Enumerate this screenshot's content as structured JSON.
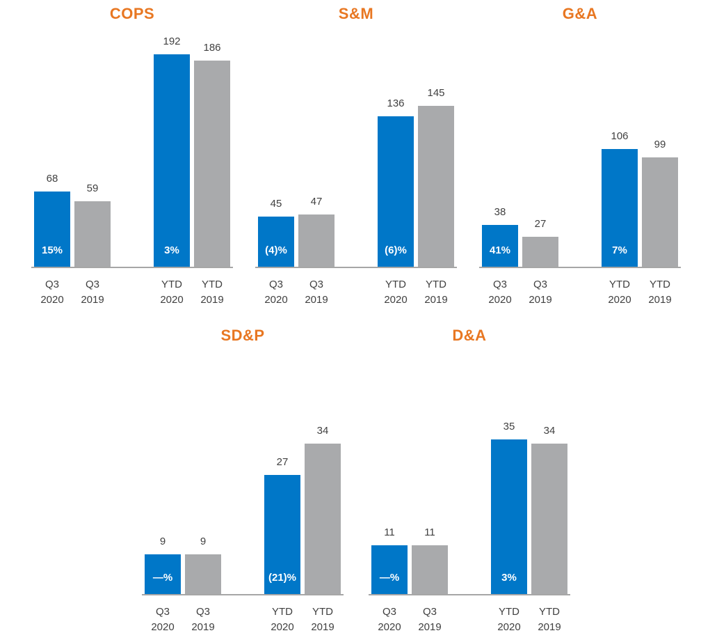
{
  "colors": {
    "bar_blue": "#0077C8",
    "bar_gray": "#A9AAAC",
    "title": "#E87722",
    "axis_line": "#A6A6A6",
    "text": "#404040",
    "pct_text": "#FFFFFF"
  },
  "bar_order": [
    "blue",
    "gray",
    "blue",
    "gray"
  ],
  "chart_data": [
    {
      "type": "bar",
      "row": "top",
      "title": "COPS",
      "categories": [
        [
          "Q3",
          "2020"
        ],
        [
          "Q3",
          "2019"
        ],
        [
          "YTD",
          "2020"
        ],
        [
          "YTD",
          "2019"
        ]
      ],
      "values": [
        68,
        59,
        192,
        186
      ],
      "pct_labels": [
        "15%",
        "",
        "3%",
        ""
      ],
      "ylim": [
        0,
        200
      ],
      "grid": false,
      "legend": false
    },
    {
      "type": "bar",
      "row": "top",
      "title": "S&M",
      "categories": [
        [
          "Q3",
          "2020"
        ],
        [
          "Q3",
          "2019"
        ],
        [
          "YTD",
          "2020"
        ],
        [
          "YTD",
          "2019"
        ]
      ],
      "values": [
        45,
        47,
        136,
        145
      ],
      "pct_labels": [
        "(4)%",
        "",
        "(6)%",
        ""
      ],
      "ylim": [
        0,
        200
      ],
      "grid": false,
      "legend": false
    },
    {
      "type": "bar",
      "row": "top",
      "title": "G&A",
      "categories": [
        [
          "Q3",
          "2020"
        ],
        [
          "Q3",
          "2019"
        ],
        [
          "YTD",
          "2020"
        ],
        [
          "YTD",
          "2019"
        ]
      ],
      "values": [
        38,
        27,
        106,
        99
      ],
      "pct_labels": [
        "41%",
        "",
        "7%",
        ""
      ],
      "ylim": [
        0,
        200
      ],
      "grid": false,
      "legend": false
    },
    {
      "type": "bar",
      "row": "bottom",
      "title": "SD&P",
      "categories": [
        [
          "Q3",
          "2020"
        ],
        [
          "Q3",
          "2019"
        ],
        [
          "YTD",
          "2020"
        ],
        [
          "YTD",
          "2019"
        ]
      ],
      "values": [
        9,
        9,
        27,
        34
      ],
      "pct_labels": [
        "—%",
        "",
        "(21)%",
        ""
      ],
      "ylim": [
        0,
        40
      ],
      "grid": false,
      "legend": false
    },
    {
      "type": "bar",
      "row": "bottom",
      "title": "D&A",
      "categories": [
        [
          "Q3",
          "2020"
        ],
        [
          "Q3",
          "2019"
        ],
        [
          "YTD",
          "2020"
        ],
        [
          "YTD",
          "2019"
        ]
      ],
      "values": [
        11,
        11,
        35,
        34
      ],
      "pct_labels": [
        "—%",
        "",
        "3%",
        ""
      ],
      "ylim": [
        0,
        40
      ],
      "grid": false,
      "legend": false
    }
  ]
}
